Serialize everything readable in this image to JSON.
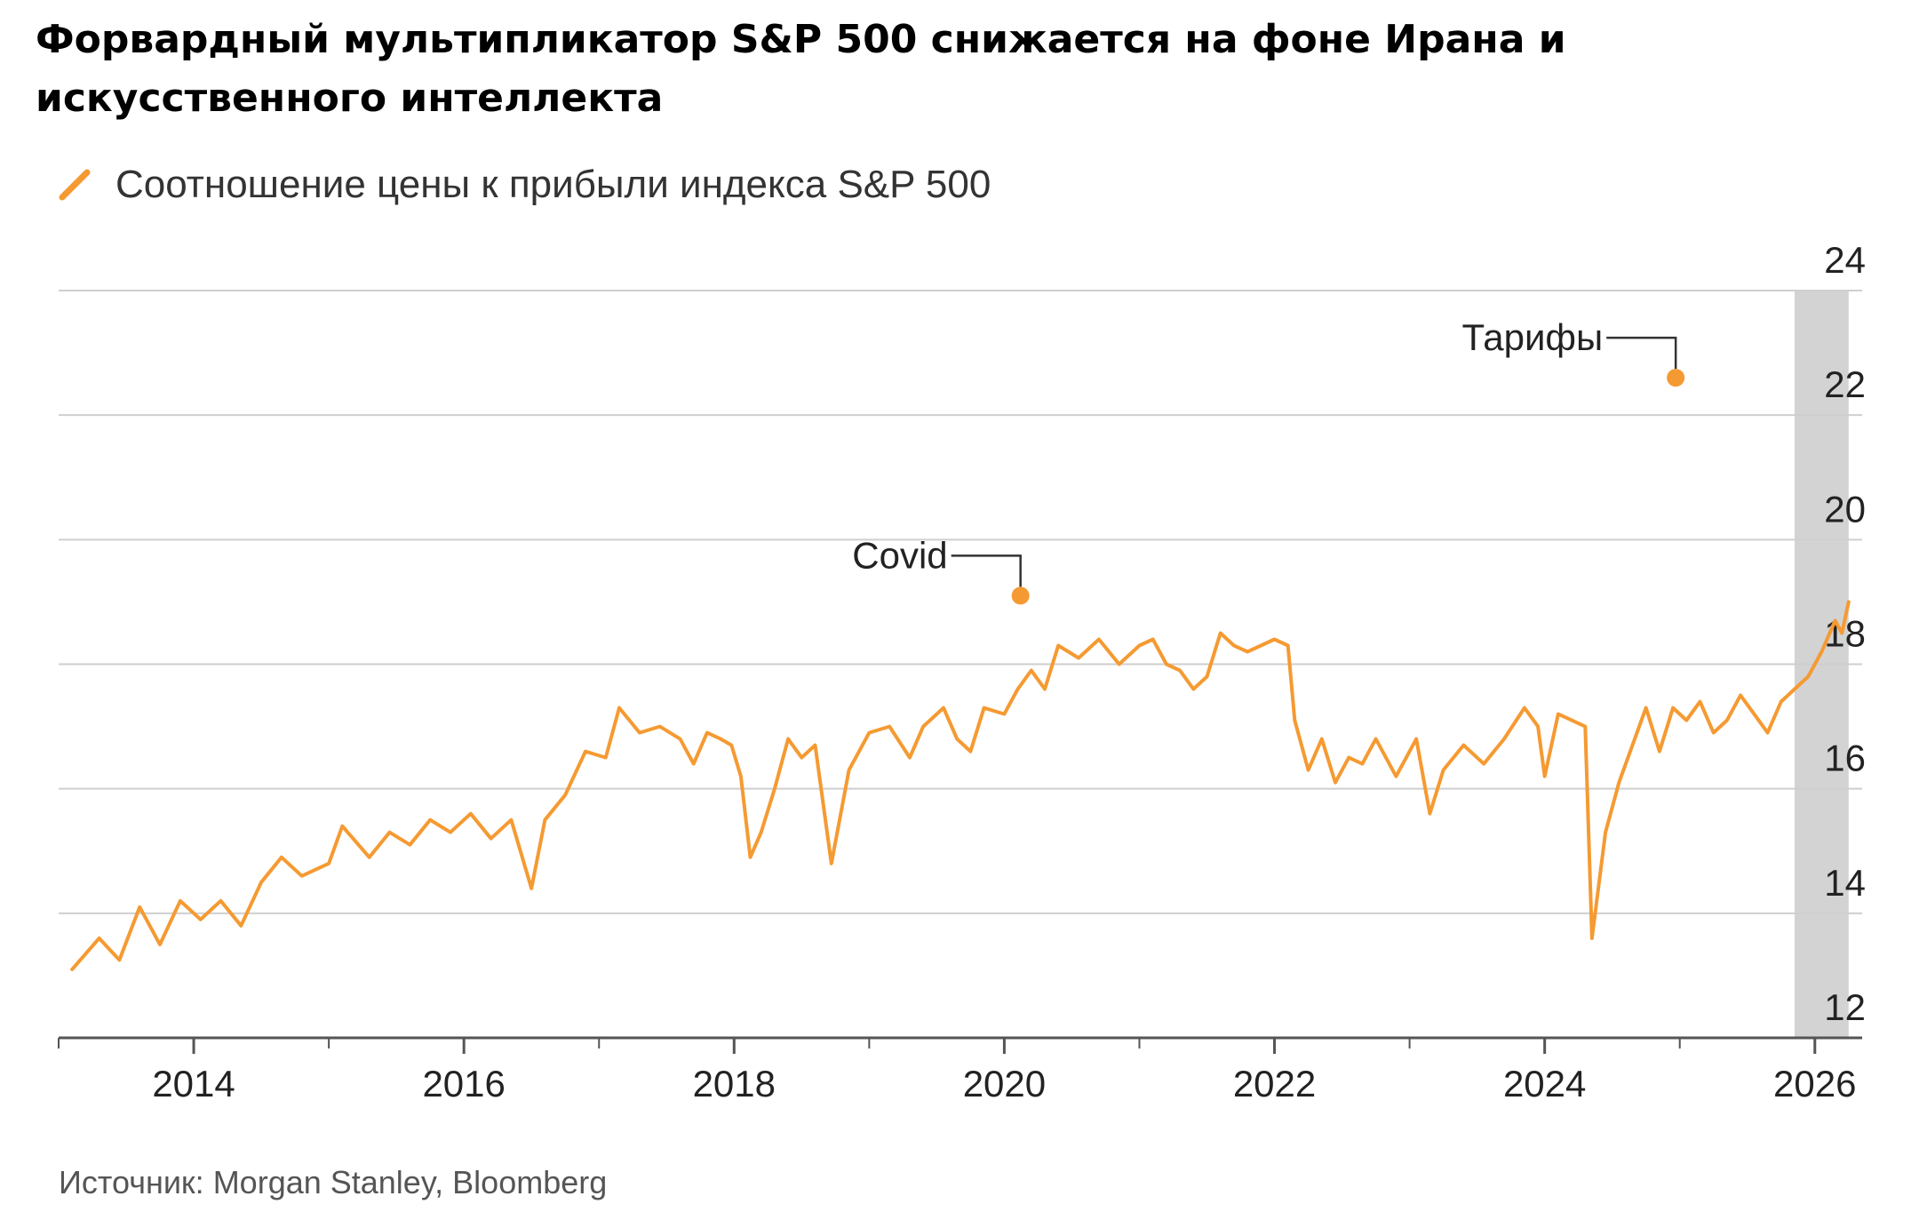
{
  "chart_data": {
    "type": "line",
    "title": "Форвардный мультипликатор S&P 500 снижается на фоне Ирана и искусственного интеллекта",
    "source": "Источник: Morgan Stanley, Bloomberg",
    "series": [
      {
        "name": "Соотношение цены к прибыли индекса S&P 500",
        "color": "#f59a32",
        "points": [
          [
            2013.1,
            13.1
          ],
          [
            2013.3,
            13.6
          ],
          [
            2013.45,
            13.25
          ],
          [
            2013.6,
            14.1
          ],
          [
            2013.75,
            13.5
          ],
          [
            2013.9,
            14.2
          ],
          [
            2014.05,
            13.9
          ],
          [
            2014.2,
            14.2
          ],
          [
            2014.35,
            13.8
          ],
          [
            2014.5,
            14.5
          ],
          [
            2014.65,
            14.9
          ],
          [
            2014.8,
            14.6
          ],
          [
            2015.0,
            14.8
          ],
          [
            2015.1,
            15.4
          ],
          [
            2015.3,
            14.9
          ],
          [
            2015.45,
            15.3
          ],
          [
            2015.6,
            15.1
          ],
          [
            2015.75,
            15.5
          ],
          [
            2015.9,
            15.3
          ],
          [
            2016.05,
            15.6
          ],
          [
            2016.2,
            15.2
          ],
          [
            2016.35,
            15.5
          ],
          [
            2016.5,
            14.4
          ],
          [
            2016.6,
            15.5
          ],
          [
            2016.75,
            15.9
          ],
          [
            2016.9,
            16.6
          ],
          [
            2017.05,
            16.5
          ],
          [
            2017.15,
            17.3
          ],
          [
            2017.3,
            16.9
          ],
          [
            2017.45,
            17.0
          ],
          [
            2017.6,
            16.8
          ],
          [
            2017.7,
            16.4
          ],
          [
            2017.8,
            16.9
          ],
          [
            2017.9,
            16.8
          ],
          [
            2017.98,
            16.7
          ],
          [
            2018.05,
            16.2
          ],
          [
            2018.12,
            14.9
          ],
          [
            2018.2,
            15.3
          ],
          [
            2018.3,
            16.0
          ],
          [
            2018.4,
            16.8
          ],
          [
            2018.5,
            16.5
          ],
          [
            2018.6,
            16.7
          ],
          [
            2018.72,
            14.8
          ],
          [
            2018.85,
            16.3
          ],
          [
            2019.0,
            16.9
          ],
          [
            2019.15,
            17.0
          ],
          [
            2019.3,
            16.5
          ],
          [
            2019.4,
            17.0
          ],
          [
            2019.55,
            17.3
          ],
          [
            2019.65,
            16.8
          ],
          [
            2019.75,
            16.6
          ],
          [
            2019.85,
            17.3
          ],
          [
            2020.0,
            17.2
          ],
          [
            2020.1,
            17.6
          ],
          [
            2020.2,
            17.9
          ],
          [
            2020.3,
            17.6
          ],
          [
            2020.4,
            18.3
          ],
          [
            2020.55,
            18.1
          ],
          [
            2020.7,
            18.4
          ],
          [
            2020.85,
            18.0
          ],
          [
            2021.0,
            18.3
          ],
          [
            2021.1,
            18.4
          ],
          [
            2021.2,
            18.0
          ],
          [
            2021.3,
            17.9
          ],
          [
            2021.4,
            17.6
          ],
          [
            2021.5,
            17.8
          ],
          [
            2021.6,
            18.5
          ],
          [
            2021.7,
            18.3
          ],
          [
            2021.8,
            18.2
          ],
          [
            2021.9,
            18.3
          ],
          [
            2022.0,
            18.4
          ],
          [
            2022.1,
            18.3
          ],
          [
            2022.15,
            17.1
          ],
          [
            2022.25,
            16.3
          ],
          [
            2022.35,
            16.8
          ],
          [
            2022.45,
            16.1
          ],
          [
            2022.55,
            16.5
          ],
          [
            2022.65,
            16.4
          ],
          [
            2022.75,
            16.8
          ],
          [
            2022.9,
            16.2
          ],
          [
            2023.05,
            16.8
          ],
          [
            2023.15,
            15.6
          ],
          [
            2023.25,
            16.3
          ],
          [
            2023.4,
            16.7
          ],
          [
            2023.55,
            16.4
          ],
          [
            2023.7,
            16.8
          ],
          [
            2023.85,
            17.3
          ],
          [
            2023.95,
            17.0
          ],
          [
            2024.0,
            16.2
          ],
          [
            2024.1,
            17.2
          ],
          [
            2024.2,
            17.1
          ],
          [
            2024.3,
            17.0
          ],
          [
            2024.35,
            13.6
          ],
          [
            2024.45,
            15.3
          ],
          [
            2024.55,
            16.1
          ],
          [
            2024.65,
            16.7
          ],
          [
            2024.75,
            17.3
          ],
          [
            2024.85,
            16.6
          ],
          [
            2024.95,
            17.3
          ],
          [
            2025.05,
            17.1
          ],
          [
            2025.15,
            17.4
          ],
          [
            2025.25,
            16.9
          ],
          [
            2025.35,
            17.1
          ],
          [
            2025.45,
            17.5
          ],
          [
            2025.55,
            17.2
          ],
          [
            2025.65,
            16.9
          ],
          [
            2025.75,
            17.4
          ],
          [
            2025.85,
            17.6
          ],
          [
            2025.95,
            17.8
          ],
          [
            2026.05,
            18.2
          ],
          [
            2026.15,
            18.7
          ],
          [
            2026.2,
            18.5
          ],
          [
            2026.25,
            19.0
          ]
        ]
      }
    ],
    "xlim": [
      2013.0,
      2026.35
    ],
    "ylim": [
      12,
      24
    ],
    "x_ticks": [
      "2014",
      "2016",
      "2018",
      "2020",
      "2022",
      "2024",
      "2026"
    ],
    "y_ticks": [
      "12",
      "14",
      "16",
      "18",
      "20",
      "22",
      "24"
    ],
    "grid": "horizontal",
    "shaded_region": {
      "from": 2025.85,
      "to": 2026.25,
      "color": "#d3d3d3"
    },
    "annotations": [
      {
        "label": "Covid",
        "x": 2020.12,
        "y": 19.1
      },
      {
        "label": "Тарифы",
        "x": 2024.97,
        "y": 22.6
      }
    ]
  }
}
